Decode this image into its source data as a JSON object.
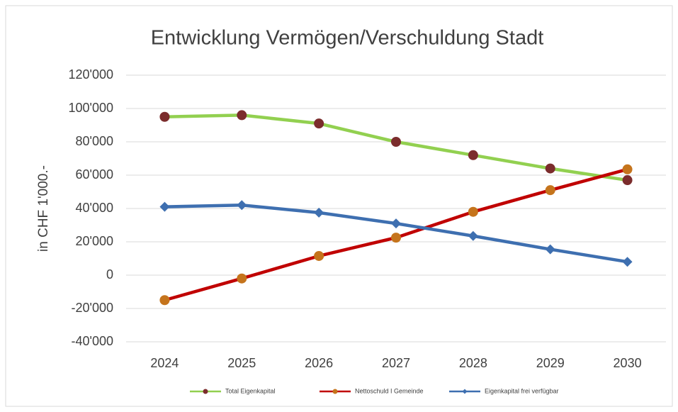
{
  "chart_data": {
    "type": "line",
    "title": "Entwicklung Vermögen/Verschuldung  Stadt",
    "y_label": "in CHF 1'000.-",
    "categories": [
      "2024",
      "2025",
      "2026",
      "2027",
      "2028",
      "2029",
      "2030"
    ],
    "series": [
      {
        "name": "Total Eigenkapital",
        "color": "#92d050",
        "marker_color": "#7b2c2c",
        "marker": "circle",
        "values": [
          95000,
          96000,
          91000,
          80000,
          72000,
          64000,
          57000
        ]
      },
      {
        "name": "Nettoschuld I Gemeinde",
        "color": "#c00000",
        "marker_color": "#c5741c",
        "marker": "circle",
        "values": [
          -15000,
          -2000,
          11500,
          22500,
          38000,
          51000,
          63500
        ]
      },
      {
        "name": "Eigenkapital frei verfügbar",
        "color": "#3e6fb0",
        "marker_color": "#3e6fb0",
        "marker": "diamond",
        "values": [
          41000,
          42000,
          37500,
          31000,
          23500,
          15500,
          8000
        ]
      }
    ],
    "ylim": [
      -40000,
      120000
    ],
    "yticks": [
      {
        "value": -40000,
        "label": "-40'000"
      },
      {
        "value": -20000,
        "label": "-20'000"
      },
      0,
      {
        "value": 20000,
        "label": "20'000"
      },
      {
        "value": 40000,
        "label": "40'000"
      },
      {
        "value": 60000,
        "label": "60'000"
      },
      {
        "value": 80000,
        "label": "80'000"
      },
      {
        "value": 100000,
        "label": "100'000"
      },
      {
        "value": 120000,
        "label": "120'000"
      }
    ],
    "grid": true,
    "legend": "bottom"
  }
}
